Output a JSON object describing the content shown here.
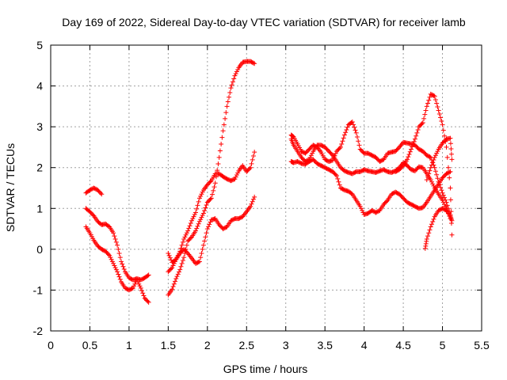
{
  "chart_data": {
    "type": "scatter",
    "title": "Day 169 of 2022, Sidereal Day-to-day VTEC variation (SDTVAR) for receiver lamb",
    "xlabel": "GPS time / hours",
    "ylabel": "SDTVAR / TECUs",
    "xlim": [
      0,
      5.5
    ],
    "ylim": [
      -2,
      5
    ],
    "xticks": [
      "0",
      "0.5",
      "1",
      "1.5",
      "2",
      "2.5",
      "3",
      "3.5",
      "4",
      "4.5",
      "5",
      "5.5"
    ],
    "yticks": [
      "-2",
      "-1",
      "0",
      "1",
      "2",
      "3",
      "4",
      "5"
    ],
    "grid": true,
    "marker": "+",
    "color": "#ff0000",
    "series": [
      {
        "x": [
          0.45,
          0.5,
          0.55,
          0.6,
          0.65
        ],
        "y": [
          1.38,
          1.45,
          1.5,
          1.45,
          1.35
        ]
      },
      {
        "x": [
          0.45,
          0.5,
          0.55,
          0.6,
          0.65,
          0.7,
          0.75,
          0.8,
          0.85,
          0.9,
          0.95,
          1.0,
          1.05,
          1.1,
          1.15,
          1.2,
          1.25
        ],
        "y": [
          1.0,
          0.92,
          0.82,
          0.68,
          0.6,
          0.62,
          0.55,
          0.4,
          0.1,
          -0.3,
          -0.55,
          -0.7,
          -0.75,
          -0.72,
          -0.75,
          -0.7,
          -0.63
        ]
      },
      {
        "x": [
          0.45,
          0.5,
          0.55,
          0.6,
          0.65,
          0.7,
          0.75,
          0.8,
          0.85,
          0.9,
          0.95,
          1.0,
          1.05,
          1.1,
          1.15,
          1.2,
          1.25
        ],
        "y": [
          0.55,
          0.4,
          0.22,
          0.08,
          0.0,
          -0.05,
          -0.15,
          -0.35,
          -0.55,
          -0.8,
          -0.95,
          -1.0,
          -0.95,
          -0.75,
          -0.95,
          -1.2,
          -1.3
        ]
      },
      {
        "x": [
          1.5,
          1.55,
          1.6,
          1.65,
          1.7,
          1.75,
          1.8,
          1.85,
          1.9,
          1.95,
          2.0,
          2.05,
          2.1,
          2.15,
          2.2,
          2.25,
          2.3,
          2.35,
          2.4,
          2.45,
          2.5,
          2.55,
          2.6
        ],
        "y": [
          -0.55,
          -0.45,
          -0.25,
          -0.05,
          0.25,
          0.45,
          0.7,
          0.9,
          1.25,
          1.45,
          1.58,
          1.68,
          1.85,
          1.85,
          1.78,
          1.72,
          1.68,
          1.72,
          1.92,
          2.05,
          1.9,
          2.0,
          2.38
        ]
      },
      {
        "x": [
          1.5,
          1.55,
          1.6,
          1.65,
          1.7,
          1.75,
          1.8,
          1.85,
          1.9,
          1.95,
          2.0,
          2.05,
          2.1,
          2.15,
          2.2,
          2.25,
          2.3,
          2.35,
          2.4,
          2.45,
          2.5,
          2.55,
          2.6
        ],
        "y": [
          -0.1,
          -0.32,
          -0.25,
          -0.1,
          0.0,
          -0.1,
          -0.22,
          -0.35,
          -0.3,
          0.1,
          0.5,
          0.72,
          0.75,
          0.6,
          0.5,
          0.55,
          0.7,
          0.75,
          0.75,
          0.8,
          0.92,
          1.05,
          1.28
        ]
      },
      {
        "x": [
          1.5,
          1.55,
          1.6,
          1.65,
          1.7,
          1.75,
          1.8,
          1.85,
          1.9,
          1.95,
          2.0,
          2.05,
          2.1,
          2.15,
          2.2,
          2.25,
          2.3,
          2.35,
          2.4,
          2.45,
          2.5,
          2.55,
          2.6
        ],
        "y": [
          -1.12,
          -0.98,
          -0.72,
          -0.5,
          -0.2,
          0.2,
          0.3,
          0.45,
          0.68,
          0.88,
          1.15,
          1.25,
          1.62,
          2.25,
          2.9,
          3.5,
          3.95,
          4.25,
          4.45,
          4.58,
          4.6,
          4.6,
          4.55
        ]
      },
      {
        "x": [
          3.07,
          3.1,
          3.15,
          3.2,
          3.25,
          3.3,
          3.35,
          3.4,
          3.45,
          3.5,
          3.55,
          3.6,
          3.65,
          3.7,
          3.75,
          3.8,
          3.85,
          3.9,
          3.95,
          4.0,
          4.05,
          4.1,
          4.15,
          4.2,
          4.25,
          4.3,
          4.35,
          4.4,
          4.45,
          4.5,
          4.55,
          4.6,
          4.65,
          4.7,
          4.75,
          4.8,
          4.85,
          4.9,
          4.95,
          5.0,
          5.05,
          5.1
        ],
        "y": [
          2.8,
          2.75,
          2.58,
          2.4,
          2.35,
          2.45,
          2.55,
          2.5,
          2.38,
          2.2,
          2.15,
          2.18,
          2.4,
          2.5,
          2.8,
          3.05,
          3.12,
          2.85,
          2.45,
          2.35,
          2.35,
          2.3,
          2.25,
          2.15,
          2.2,
          2.35,
          2.38,
          2.4,
          2.5,
          2.62,
          2.6,
          2.58,
          2.55,
          2.45,
          2.4,
          2.3,
          2.25,
          2.0,
          1.65,
          1.38,
          1.15,
          0.85
        ]
      },
      {
        "x": [
          3.07,
          3.1,
          3.15,
          3.2,
          3.25,
          3.3,
          3.35,
          3.4,
          3.45,
          3.5,
          3.55,
          3.6,
          3.65,
          3.7,
          3.75,
          3.8,
          3.85,
          3.9,
          3.95,
          4.0,
          4.05,
          4.1,
          4.15,
          4.2,
          4.25,
          4.3,
          4.35,
          4.4,
          4.45,
          4.5,
          4.55,
          4.6,
          4.65,
          4.7,
          4.75,
          4.8,
          4.85,
          4.9,
          4.95,
          5.0,
          5.05,
          5.1
        ],
        "y": [
          2.7,
          2.55,
          2.4,
          2.25,
          2.15,
          2.2,
          2.4,
          2.55,
          2.55,
          2.5,
          2.4,
          2.3,
          2.15,
          2.0,
          1.92,
          1.88,
          1.85,
          1.9,
          1.9,
          1.95,
          1.92,
          1.9,
          1.88,
          1.92,
          1.95,
          1.9,
          1.88,
          1.92,
          2.0,
          2.12,
          2.05,
          1.95,
          1.92,
          2.02,
          2.0,
          1.85,
          1.7,
          1.5,
          1.35,
          1.2,
          1.0,
          0.75
        ]
      },
      {
        "x": [
          3.07,
          3.1,
          3.15,
          3.2,
          3.25,
          3.3,
          3.35,
          3.4,
          3.45,
          3.5,
          3.55,
          3.6,
          3.65,
          3.7,
          3.75,
          3.8,
          3.85,
          3.9,
          3.95,
          4.0,
          4.05,
          4.1,
          4.15,
          4.2,
          4.25,
          4.3,
          4.35,
          4.4,
          4.45,
          4.5,
          4.55,
          4.6,
          4.65,
          4.7,
          4.75,
          4.8,
          4.85,
          4.9,
          4.95,
          5.0,
          5.05,
          5.1
        ],
        "y": [
          2.15,
          2.12,
          2.15,
          2.1,
          2.08,
          2.15,
          2.2,
          2.1,
          2.05,
          2.0,
          1.95,
          1.9,
          1.8,
          1.5,
          1.45,
          1.42,
          1.35,
          1.2,
          1.05,
          0.85,
          0.88,
          0.95,
          0.9,
          0.95,
          1.1,
          1.2,
          1.35,
          1.4,
          1.35,
          1.25,
          1.15,
          1.1,
          1.05,
          1.0,
          1.02,
          1.15,
          1.3,
          1.45,
          1.6,
          1.75,
          1.85,
          1.9
        ]
      },
      {
        "x": [
          4.78,
          4.8,
          4.85,
          4.9,
          4.95,
          5.0,
          5.05,
          5.1,
          5.12
        ],
        "y": [
          0.02,
          0.25,
          0.55,
          0.8,
          0.95,
          1.0,
          0.95,
          0.82,
          0.7
        ]
      },
      {
        "x": [
          4.4,
          4.45,
          4.5,
          4.55,
          4.6,
          4.65,
          4.7,
          4.75,
          4.8,
          4.85,
          4.9,
          4.95,
          5.0,
          5.05,
          5.1,
          5.12
        ],
        "y": [
          1.9,
          1.95,
          2.05,
          2.2,
          2.45,
          2.7,
          3.0,
          3.1,
          3.5,
          3.8,
          3.75,
          3.4,
          3.05,
          2.5,
          1.5,
          0.35
        ]
      },
      {
        "x": [
          4.8,
          4.85,
          4.9,
          4.95,
          5.0,
          5.05,
          5.1,
          5.12
        ],
        "y": [
          1.7,
          2.0,
          2.25,
          2.45,
          2.6,
          2.7,
          2.72,
          2.2
        ]
      }
    ]
  }
}
